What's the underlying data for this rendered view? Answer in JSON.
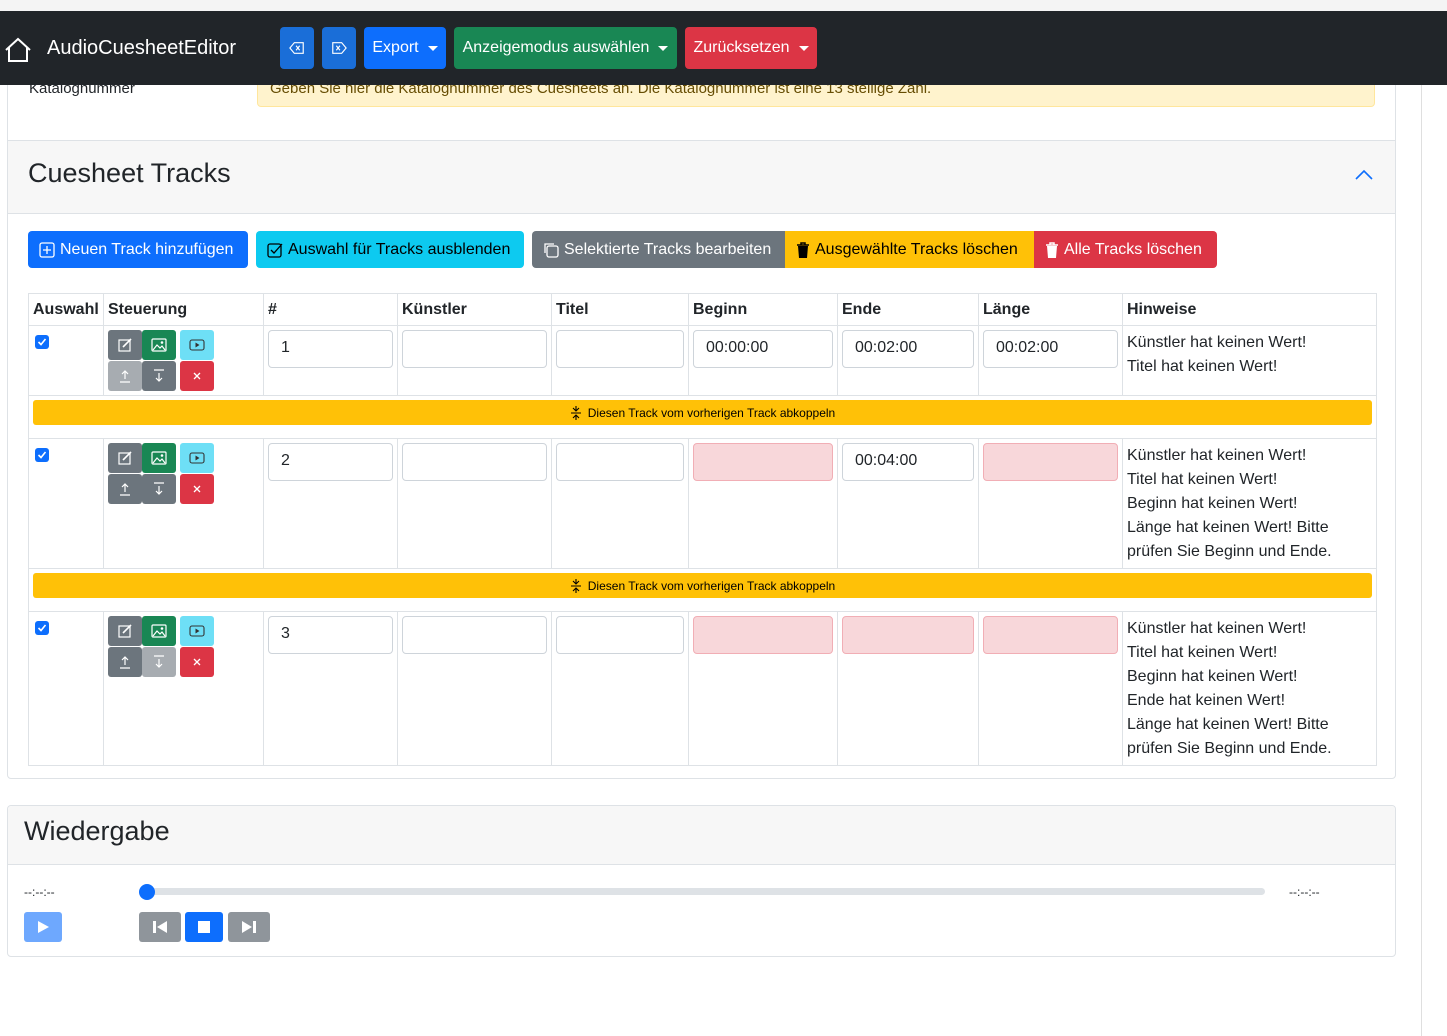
{
  "navbar": {
    "brand": "AudioCuesheetEditor",
    "export_label": "Export",
    "display_mode_label": "Anzeigemodus auswählen",
    "reset_label": "Zurücksetzen",
    "colors": {
      "bg": "#212529",
      "primary": "#0d6efd",
      "success": "#198754",
      "danger": "#dc3545"
    }
  },
  "catalog": {
    "label": "Katalognummer",
    "hint": "Geben Sie hier die Katalognummer des Cuesheets an. Die Katalognummer ist eine 13 stellige Zahl."
  },
  "tracks": {
    "title": "Cuesheet Tracks",
    "actions": {
      "add": "Neuen Track hinzufügen",
      "hide_selection": "Auswahl für Tracks ausblenden",
      "edit_selected": "Selektierte Tracks bearbeiten",
      "delete_selected": "Ausgewählte Tracks löschen",
      "delete_all": "Alle Tracks löschen"
    },
    "columns": [
      "Auswahl",
      "Steuerung",
      "#",
      "Künstler",
      "Titel",
      "Beginn",
      "Ende",
      "Länge",
      "Hinweise"
    ],
    "decouple_label": "Diesen Track vom vorherigen Track abkoppeln",
    "rows": [
      {
        "number": "1",
        "artist": "",
        "title": "",
        "begin": "00:00:00",
        "end": "00:02:00",
        "length": "00:02:00",
        "hints": [
          "Künstler hat keinen Wert!",
          "Titel hat keinen Wert!"
        ]
      },
      {
        "number": "2",
        "artist": "",
        "title": "",
        "begin": "",
        "end": "00:04:00",
        "length": "",
        "hints": [
          "Künstler hat keinen Wert!",
          "Titel hat keinen Wert!",
          "Beginn hat keinen Wert!",
          "Länge hat keinen Wert! Bitte",
          "prüfen Sie Beginn und Ende."
        ]
      },
      {
        "number": "3",
        "artist": "",
        "title": "",
        "begin": "",
        "end": "",
        "length": "",
        "hints": [
          "Künstler hat keinen Wert!",
          "Titel hat keinen Wert!",
          "Beginn hat keinen Wert!",
          "Ende hat keinen Wert!",
          "Länge hat keinen Wert! Bitte",
          "prüfen Sie Beginn und Ende."
        ]
      }
    ]
  },
  "playback": {
    "title": "Wiedergabe",
    "current_time": "--:--:--",
    "total_time": "--:--:--",
    "progress": 0
  }
}
